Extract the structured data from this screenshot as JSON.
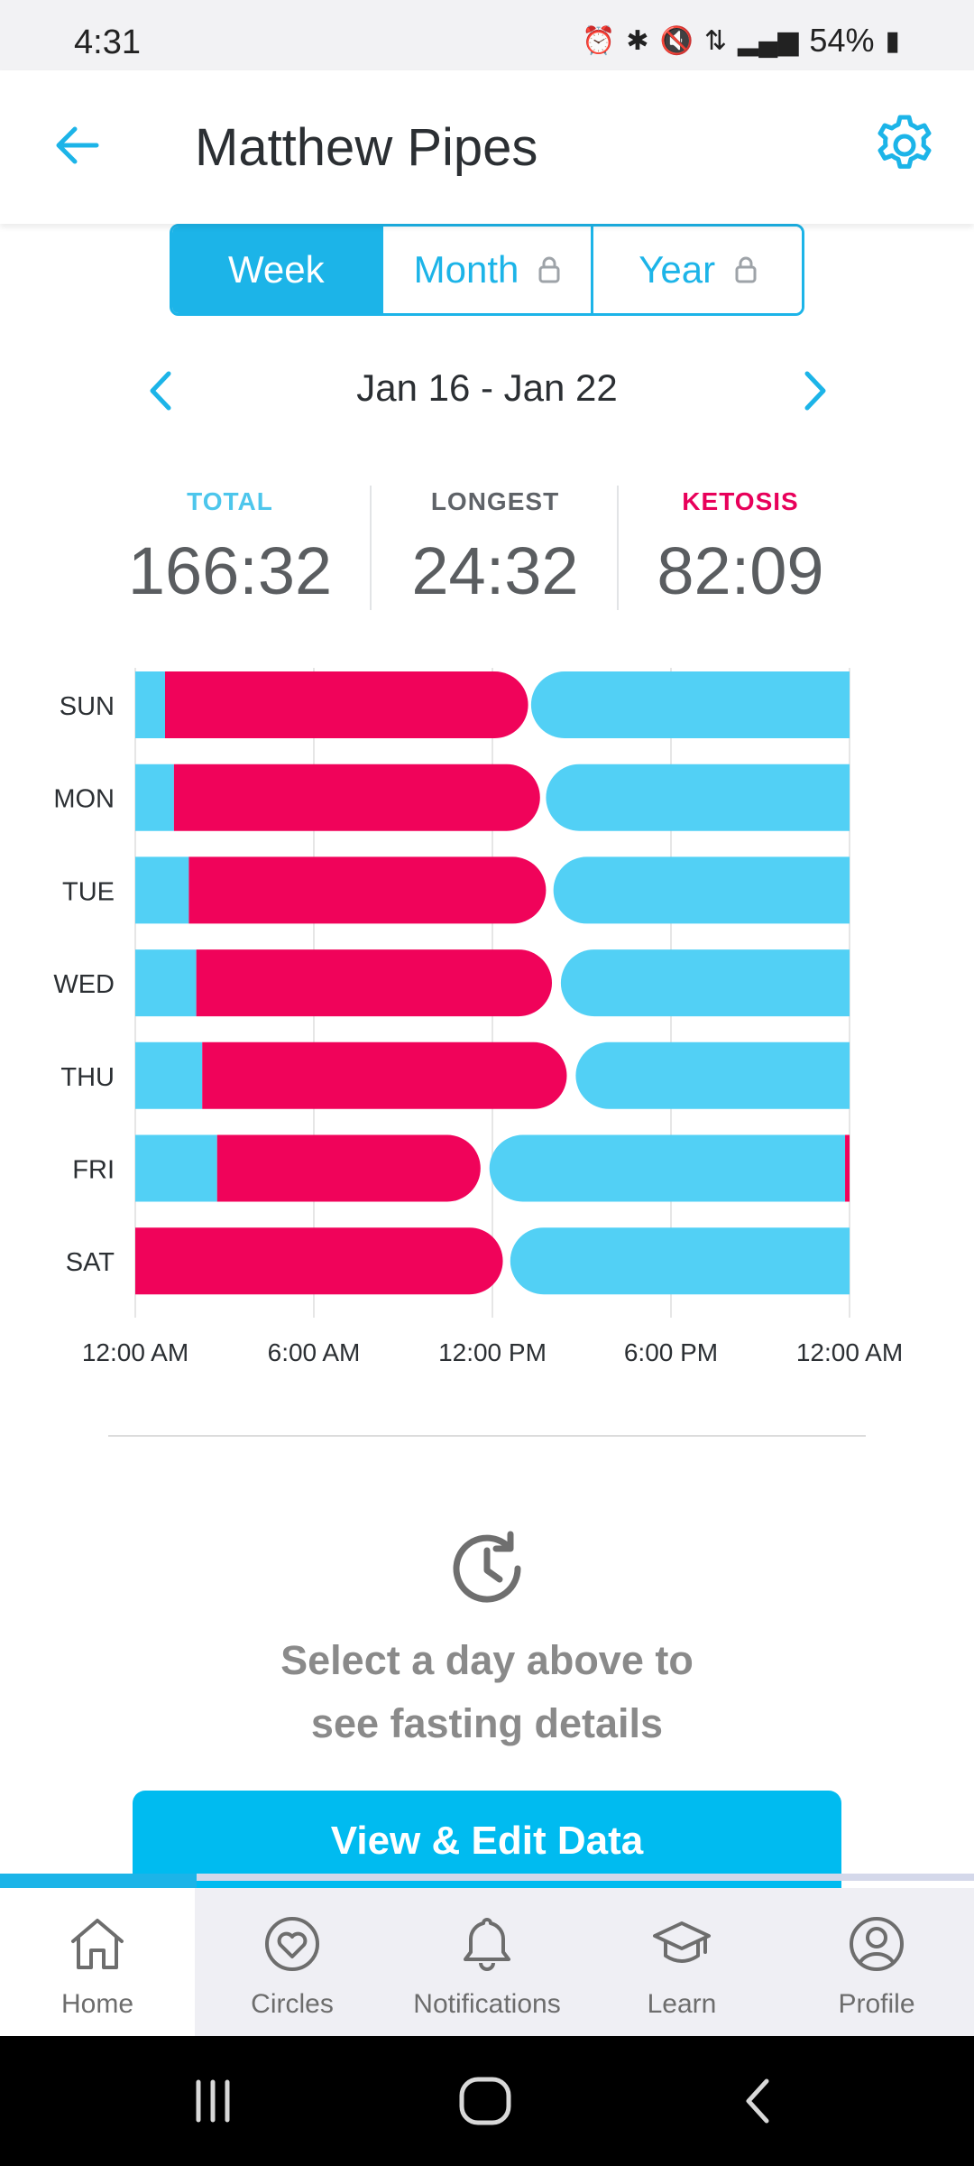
{
  "status_bar": {
    "time": "4:31",
    "battery": "54%"
  },
  "header": {
    "title": "Matthew Pipes",
    "back_icon": "arrow-left-icon",
    "settings_icon": "gear-icon"
  },
  "tabs": [
    {
      "label": "Week",
      "active": true,
      "locked": false
    },
    {
      "label": "Month",
      "active": false,
      "locked": true
    },
    {
      "label": "Year",
      "active": false,
      "locked": true
    }
  ],
  "date_range": {
    "label": "Jan 16  -  Jan 22"
  },
  "stats": {
    "total": {
      "label": "TOTAL",
      "value": "166:32",
      "color": "#4dc6ec"
    },
    "longest": {
      "label": "LONGEST",
      "value": "24:32",
      "color": "#5f6368"
    },
    "ketosis": {
      "label": "KETOSIS",
      "value": "82:09",
      "color": "#e8005a"
    }
  },
  "colors": {
    "accent": "#1cb4e8",
    "fasting": "#52d0f5",
    "ketosis": "#f0035a"
  },
  "chart_data": {
    "type": "bar",
    "orientation": "horizontal-timeline",
    "categories": [
      "SUN",
      "MON",
      "TUE",
      "WED",
      "THU",
      "FRI",
      "SAT"
    ],
    "x_tick_labels": [
      "12:00 AM",
      "6:00 AM",
      "12:00 PM",
      "6:00 PM",
      "12:00 AM"
    ],
    "x_range_hours": [
      0,
      24
    ],
    "series": [
      {
        "name": "",
        "color": "#52d0f5",
        "segments": [
          [
            0,
            1.0
          ],
          [
            0,
            1.3
          ],
          [
            0,
            1.8
          ],
          [
            0,
            2.05
          ],
          [
            0,
            2.25
          ],
          [
            0,
            2.75
          ],
          []
        ]
      },
      {
        "name": "",
        "color": "#f0035a",
        "segments": [
          [
            1.0,
            13.2
          ],
          [
            1.3,
            13.6
          ],
          [
            1.8,
            13.8
          ],
          [
            2.05,
            14.0
          ],
          [
            2.25,
            14.5
          ],
          [
            2.75,
            11.6
          ],
          [
            0,
            12.35
          ]
        ]
      },
      {
        "name": "",
        "color": "#52d0f5",
        "segments": [
          [
            13.3,
            24
          ],
          [
            13.8,
            24
          ],
          [
            14.05,
            24
          ],
          [
            14.3,
            24
          ],
          [
            14.8,
            24
          ],
          [
            11.9,
            23.85
          ],
          [
            12.6,
            24
          ]
        ]
      },
      {
        "name": "",
        "color": "#f0035a",
        "segments": [
          [],
          [],
          [],
          [],
          [],
          [
            23.85,
            24
          ],
          []
        ]
      }
    ]
  },
  "empty_state": {
    "icon": "history-clock-icon",
    "text": "Select a day above to\nsee fasting details"
  },
  "cta": {
    "label": "View & Edit Data"
  },
  "bottom_nav": [
    {
      "label": "Home",
      "icon": "home-icon",
      "active": true
    },
    {
      "label": "Circles",
      "icon": "heart-circle-icon",
      "active": false
    },
    {
      "label": "Notifications",
      "icon": "bell-icon",
      "active": false
    },
    {
      "label": "Learn",
      "icon": "graduation-cap-icon",
      "active": false
    },
    {
      "label": "Profile",
      "icon": "user-icon",
      "active": false
    }
  ]
}
